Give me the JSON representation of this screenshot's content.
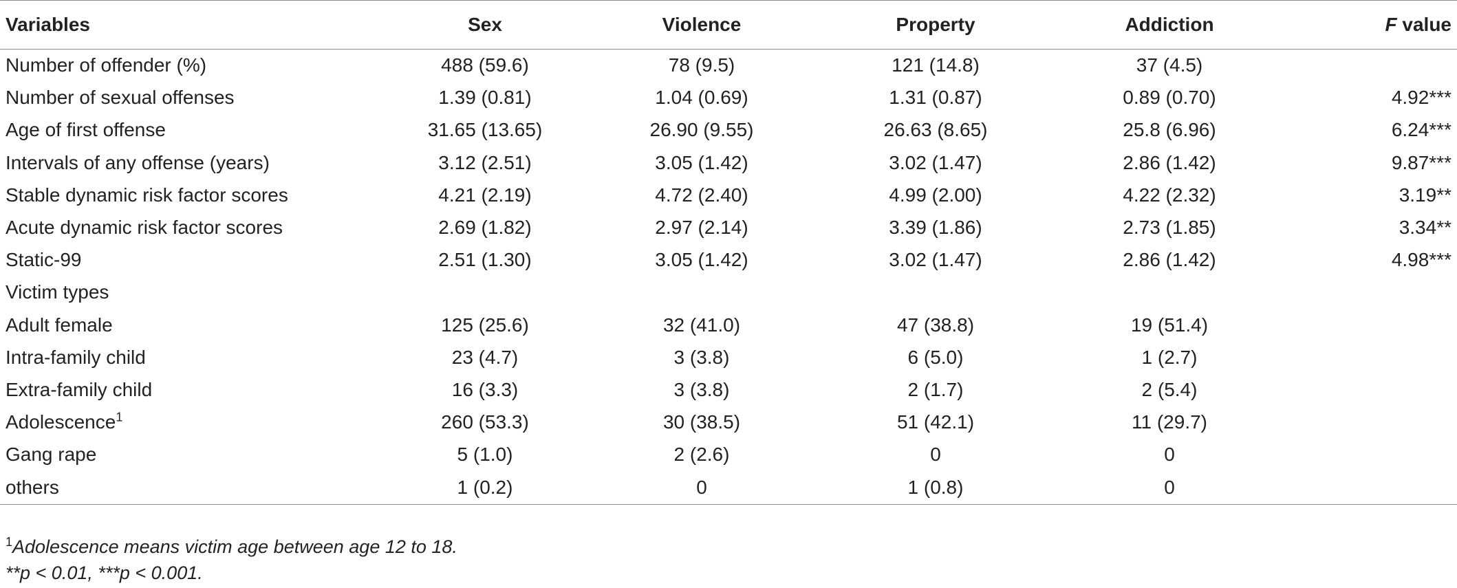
{
  "table": {
    "headers": {
      "variables": "Variables",
      "sex": "Sex",
      "violence": "Violence",
      "property": "Property",
      "addiction": "Addiction",
      "f_italic": "F",
      "f_rest": " value"
    },
    "rows": [
      {
        "label": "Number of offender (%)",
        "sex": "488 (59.6)",
        "violence": "78 (9.5)",
        "property": "121 (14.8)",
        "addiction": "37 (4.5)",
        "f": ""
      },
      {
        "label": "Number of sexual offenses",
        "sex": "1.39 (0.81)",
        "violence": "1.04 (0.69)",
        "property": "1.31 (0.87)",
        "addiction": "0.89 (0.70)",
        "f": "4.92***"
      },
      {
        "label": "Age of first offense",
        "sex": "31.65 (13.65)",
        "violence": "26.90 (9.55)",
        "property": "26.63 (8.65)",
        "addiction": "25.8 (6.96)",
        "f": "6.24***"
      },
      {
        "label": "Intervals of any offense (years)",
        "sex": "3.12 (2.51)",
        "violence": "3.05 (1.42)",
        "property": "3.02 (1.47)",
        "addiction": "2.86 (1.42)",
        "f": "9.87***"
      },
      {
        "label": "Stable dynamic risk factor scores",
        "sex": "4.21 (2.19)",
        "violence": "4.72 (2.40)",
        "property": "4.99 (2.00)",
        "addiction": "4.22 (2.32)",
        "f": "3.19**"
      },
      {
        "label": "Acute dynamic risk factor scores",
        "sex": "2.69 (1.82)",
        "violence": "2.97 (2.14)",
        "property": "3.39 (1.86)",
        "addiction": "2.73 (1.85)",
        "f": "3.34**"
      },
      {
        "label": "Static-99",
        "sex": "2.51 (1.30)",
        "violence": "3.05 (1.42)",
        "property": "3.02 (1.47)",
        "addiction": "2.86 (1.42)",
        "f": "4.98***"
      },
      {
        "label": "Victim types",
        "sex": "",
        "violence": "",
        "property": "",
        "addiction": "",
        "f": ""
      },
      {
        "label": "Adult female",
        "sex": "125 (25.6)",
        "violence": "32 (41.0)",
        "property": "47 (38.8)",
        "addiction": "19 (51.4)",
        "f": ""
      },
      {
        "label": "Intra-family child",
        "sex": "23 (4.7)",
        "violence": "3 (3.8)",
        "property": "6 (5.0)",
        "addiction": "1 (2.7)",
        "f": ""
      },
      {
        "label": "Extra-family child",
        "sex": "16 (3.3)",
        "violence": "3 (3.8)",
        "property": "2 (1.7)",
        "addiction": "2 (5.4)",
        "f": ""
      },
      {
        "label": "Adolescence",
        "label_sup": "1",
        "sex": "260 (53.3)",
        "violence": "30 (38.5)",
        "property": "51 (42.1)",
        "addiction": "11 (29.7)",
        "f": ""
      },
      {
        "label": "Gang rape",
        "sex": "5 (1.0)",
        "violence": "2 (2.6)",
        "property": "0",
        "addiction": "0",
        "f": ""
      },
      {
        "label": "others",
        "sex": "1 (0.2)",
        "violence": "0",
        "property": "1 (0.8)",
        "addiction": "0",
        "f": ""
      }
    ]
  },
  "notes": {
    "footnote_marker": "1",
    "footnote_text": "Adolescence means victim age between age 12 to 18.",
    "significance": "**p < 0.01, ***p < 0.001."
  }
}
